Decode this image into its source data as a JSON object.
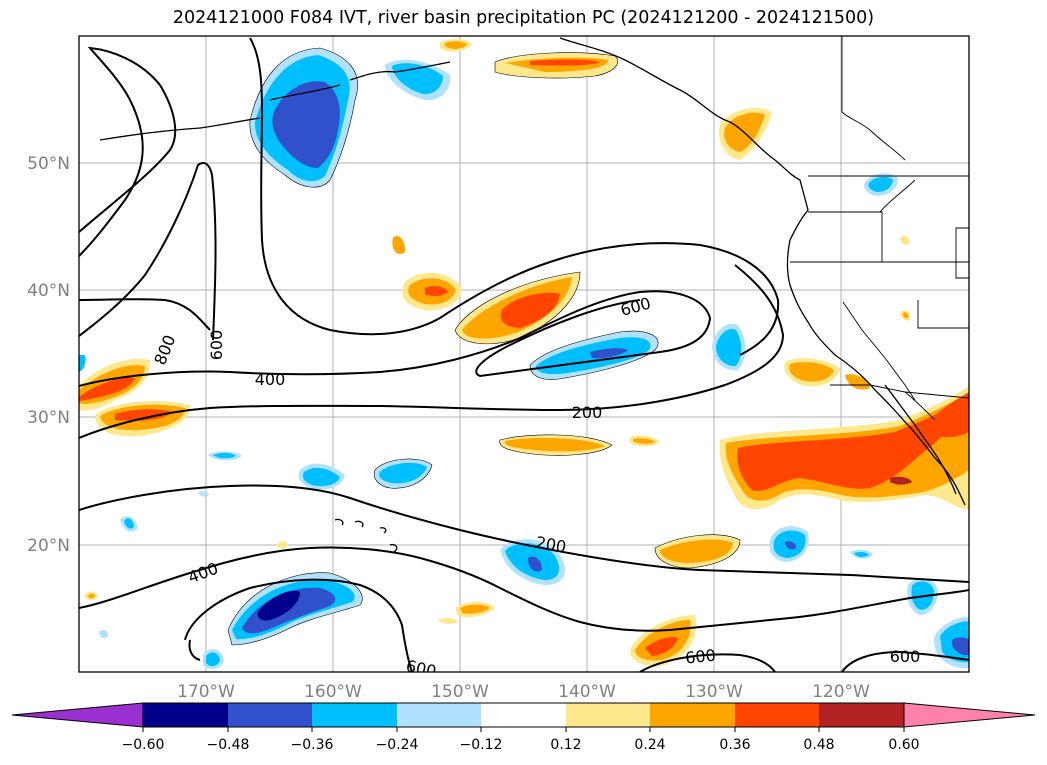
{
  "title": "2024121000 F084 IVT, river basin precipitation PC (2024121200 - 2024121500)",
  "map": {
    "lat_labels": [
      "50°N",
      "40°N",
      "30°N",
      "20°N"
    ],
    "lon_labels": [
      "170°W",
      "160°W",
      "150°W",
      "140°W",
      "130°W",
      "120°W"
    ],
    "contour_labels": [
      "800",
      "600",
      "400",
      "600",
      "200",
      "200",
      "400",
      "600",
      "600",
      "600"
    ]
  },
  "colorbar": {
    "ticks": [
      "−0.60",
      "−0.48",
      "−0.36",
      "−0.24",
      "−0.12",
      "0.12",
      "0.24",
      "0.36",
      "0.48",
      "0.60"
    ],
    "colors": [
      "#9b30d0",
      "#00008b",
      "#3050cc",
      "#00bfff",
      "#b0e2ff",
      "#ffffff",
      "#ffe78c",
      "#ffa500",
      "#ff4500",
      "#b22222",
      "#ff82ab"
    ]
  },
  "colors": {
    "positive_fill_1": "#ffe78c",
    "positive_fill_2": "#ffa500",
    "positive_fill_3": "#ff4500",
    "negative_fill_1": "#b0e2ff",
    "negative_fill_2": "#00bfff",
    "negative_fill_3": "#3050cc",
    "negative_fill_4": "#00008b",
    "grid": "#b0b0b0",
    "contour": "#000000"
  }
}
